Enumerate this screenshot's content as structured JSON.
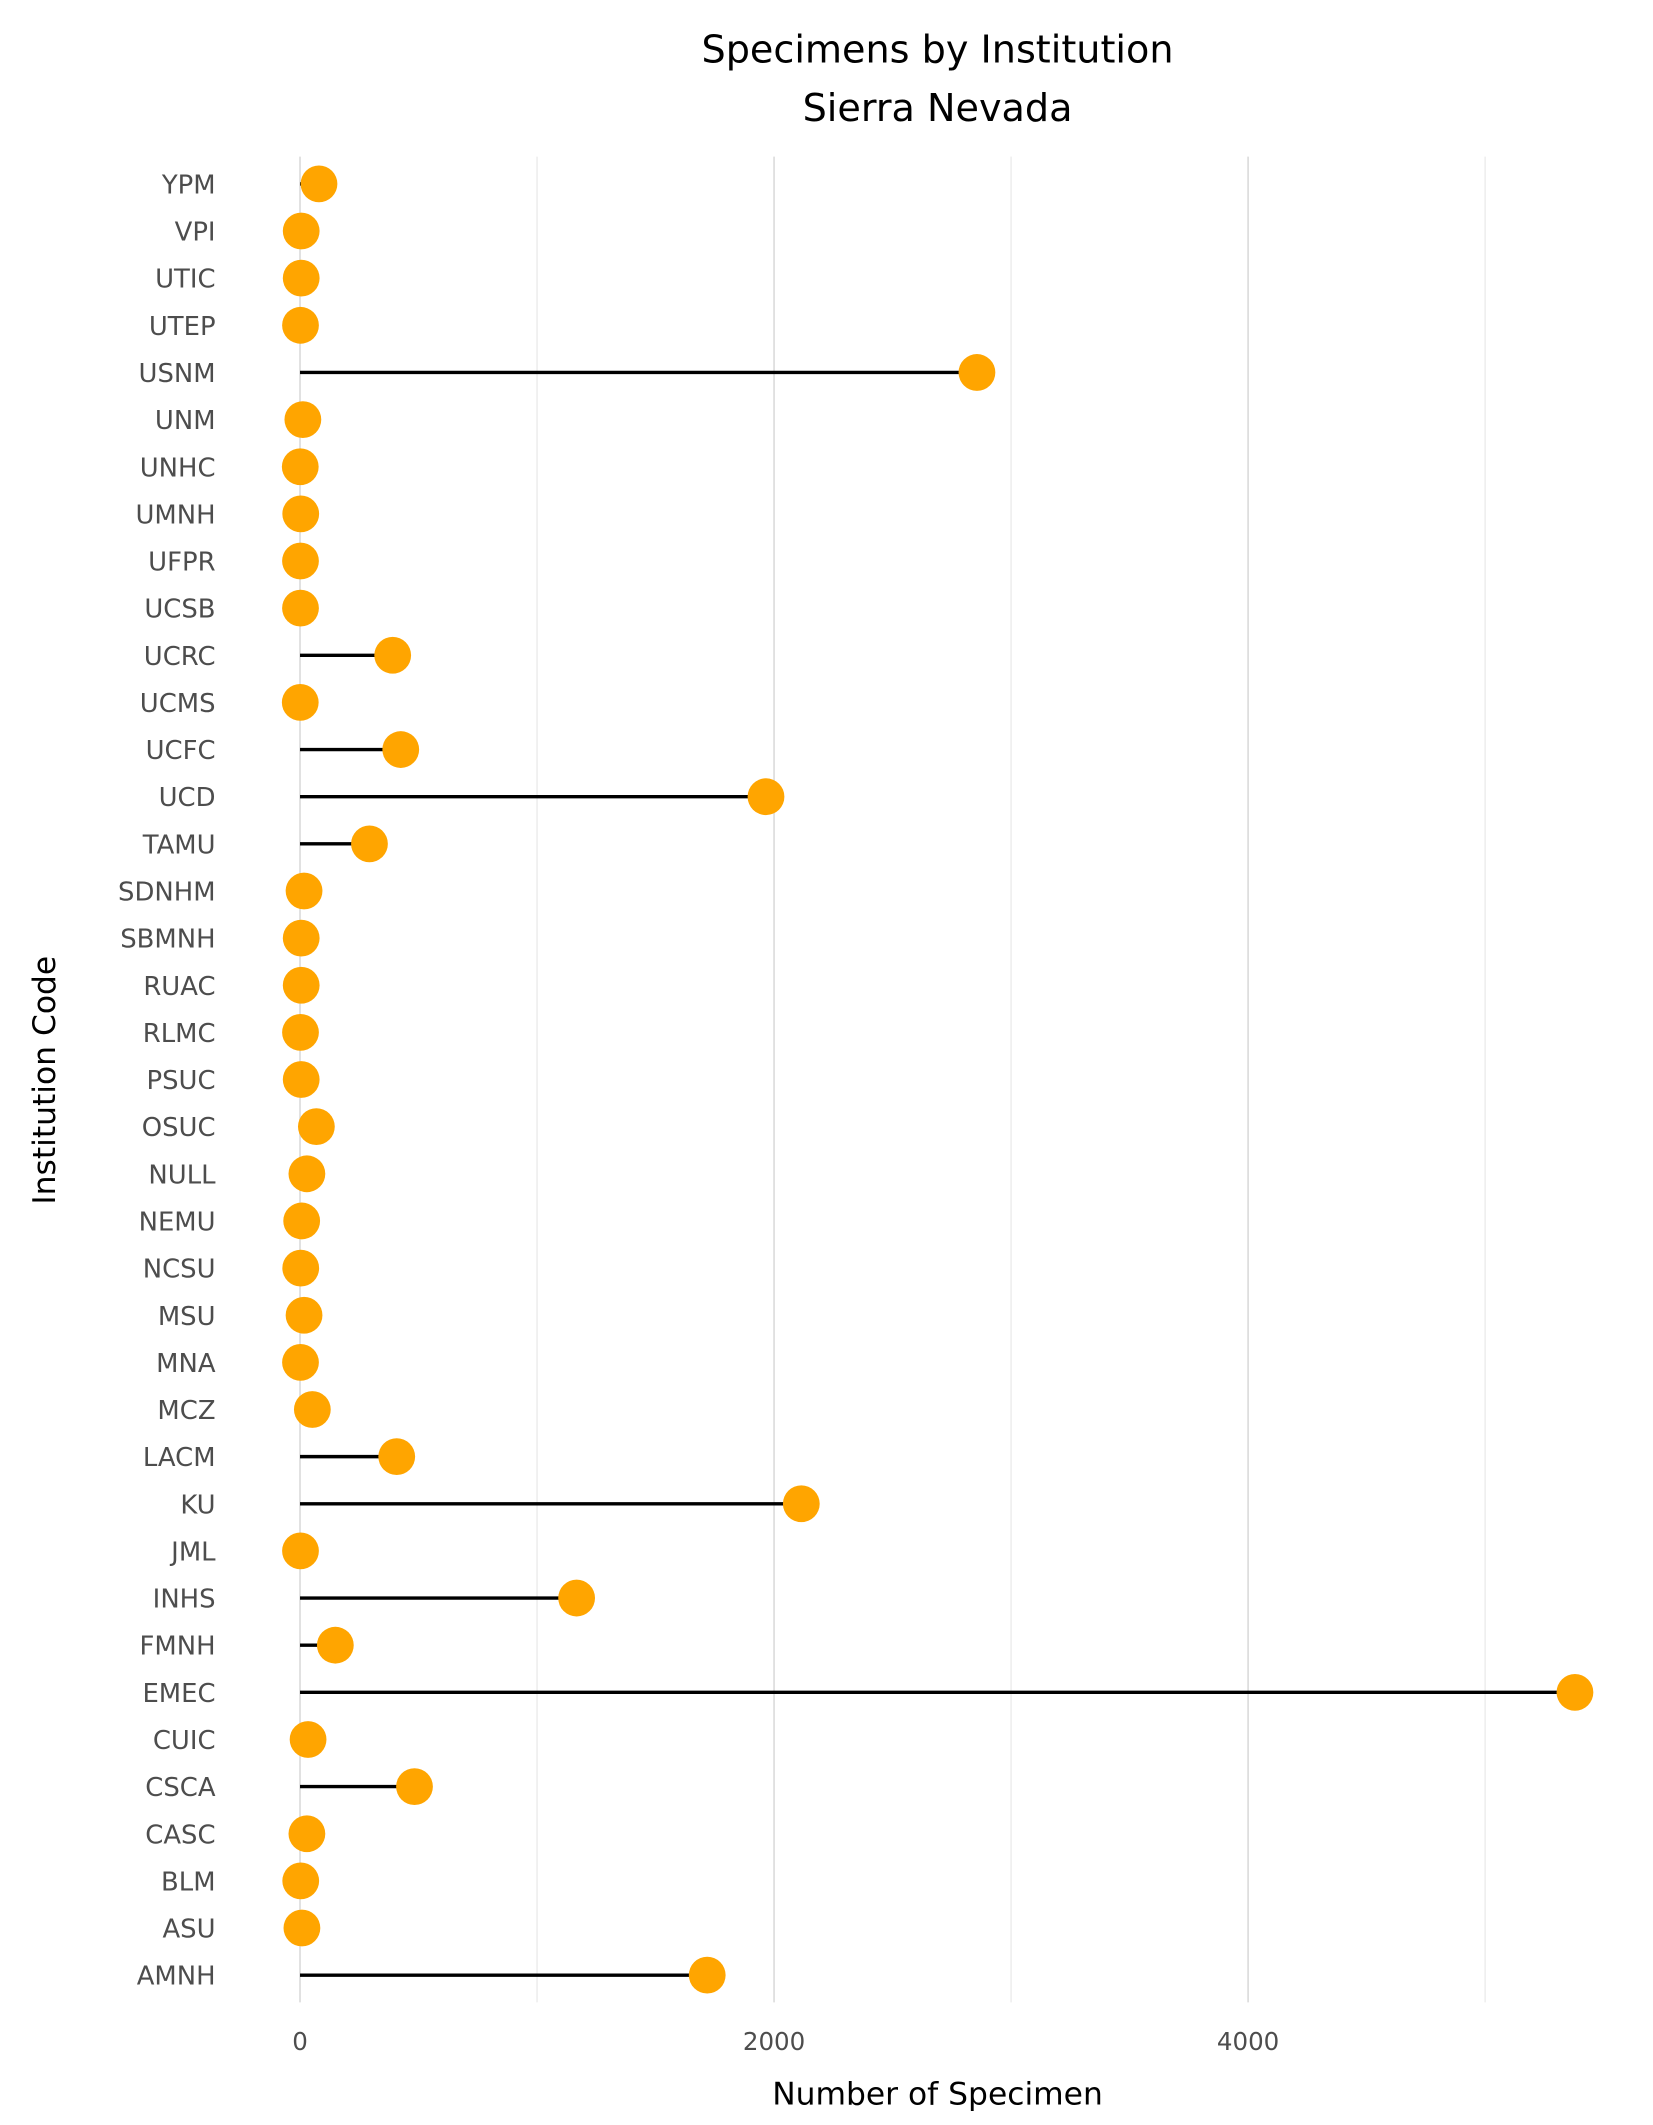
{
  "chart_data": {
    "type": "lollipop",
    "title": "Specimens by Institution",
    "subtitle": "Sierra Nevada",
    "xlabel": "Number of Specimen",
    "ylabel": "Institution Code",
    "xlim": [
      0,
      5379
    ],
    "xticks": [
      0,
      2000,
      4000
    ],
    "xtick_labels": [
      "0",
      "2000",
      "4000"
    ],
    "minor_grid": [
      1000,
      3000,
      5000
    ],
    "grid": true,
    "point_color": "#FFA500",
    "segment_color": "#000000",
    "categories": [
      "YPM",
      "VPI",
      "UTIC",
      "UTEP",
      "USNM",
      "UNM",
      "UNHC",
      "UMNH",
      "UFPR",
      "UCSB",
      "UCRC",
      "UCMS",
      "UCFC",
      "UCD",
      "TAMU",
      "SDNHM",
      "SBMNH",
      "RUAC",
      "RLMC",
      "PSUC",
      "OSUC",
      "NULL",
      "NEMU",
      "NCSU",
      "MSU",
      "MNA",
      "MCZ",
      "LACM",
      "KU",
      "JML",
      "INHS",
      "FMNH",
      "EMEC",
      "CUIC",
      "CSCA",
      "CASC",
      "BLM",
      "ASU",
      "AMNH"
    ],
    "values": [
      80,
      5,
      5,
      2,
      2856,
      12,
      1,
      3,
      2,
      2,
      391,
      1,
      425,
      1966,
      293,
      17,
      5,
      5,
      2,
      5,
      69,
      29,
      7,
      3,
      17,
      2,
      52,
      408,
      2115,
      2,
      1167,
      149,
      5379,
      34,
      483,
      29,
      3,
      8,
      1718
    ]
  }
}
